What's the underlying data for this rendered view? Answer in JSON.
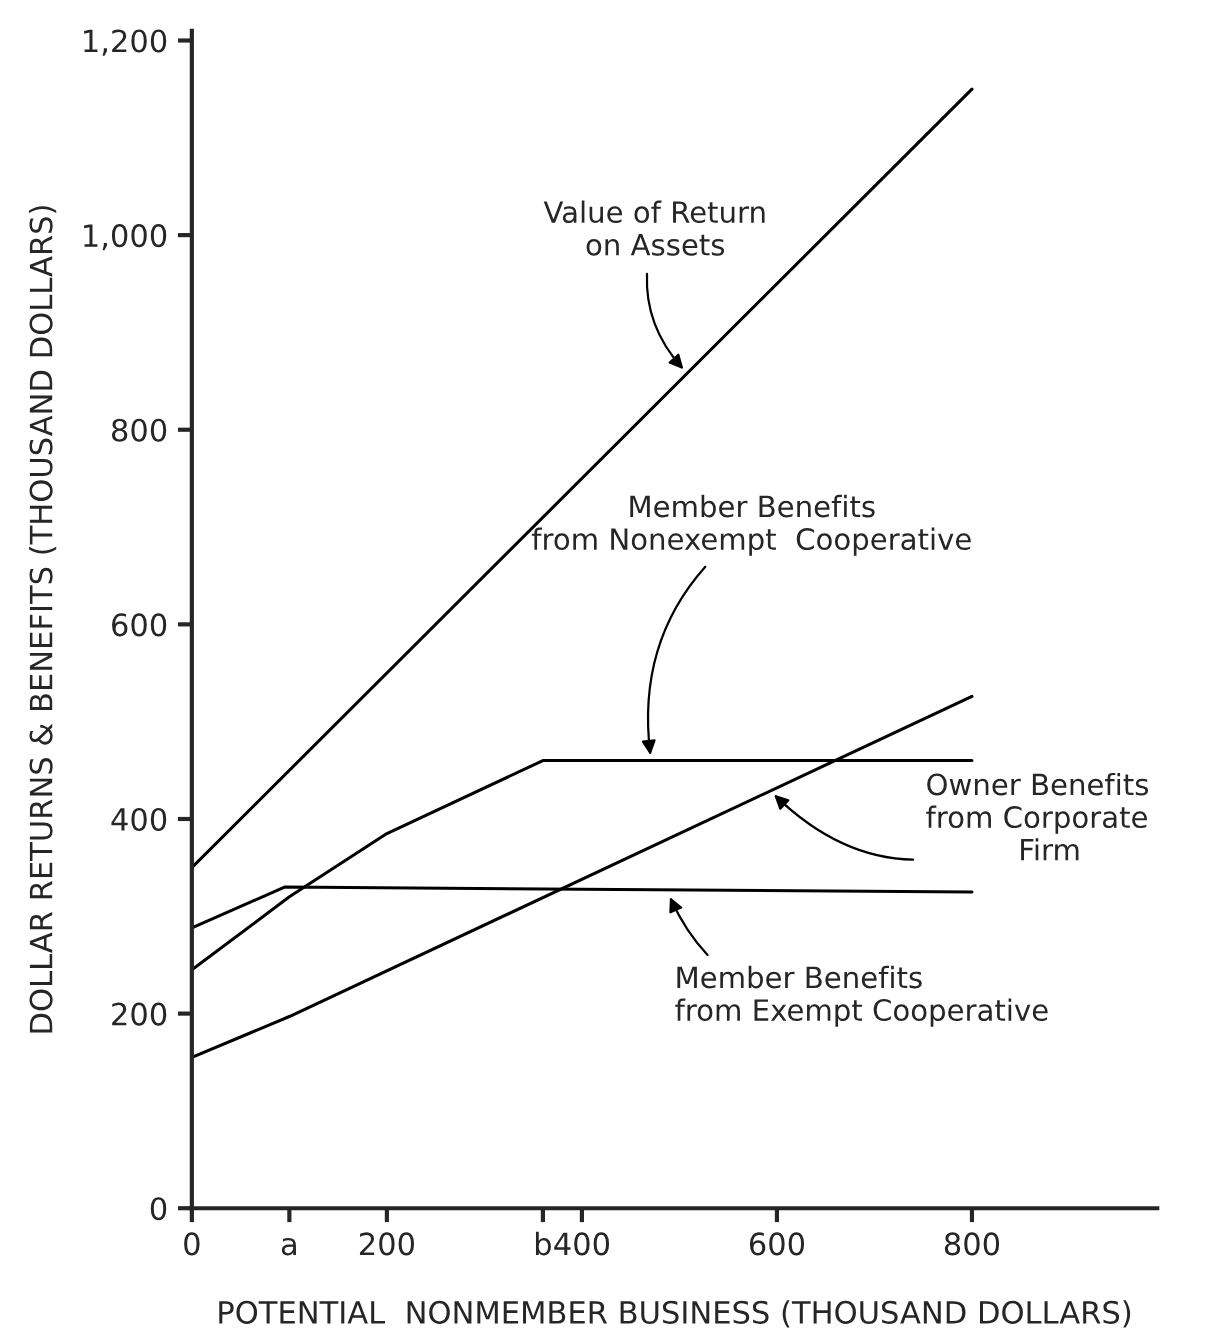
{
  "chart_data": {
    "type": "line",
    "xlabel": "POTENTIAL  NONMEMBER BUSINESS (THOUSAND DOLLARS)",
    "ylabel": "DOLLAR RETURNS & BENEFITS (THOUSAND DOLLARS)",
    "series": [
      {
        "color": "#000000",
        "x": [
          0,
          800
        ],
        "values": [
          350,
          1150
        ]
      },
      {
        "color": "#000000",
        "x": [
          0,
          100,
          200,
          360,
          800
        ],
        "values": [
          245,
          320,
          385,
          460,
          460
        ]
      },
      {
        "color": "#000000",
        "x": [
          0,
          100,
          800
        ],
        "values": [
          155,
          197,
          526
        ]
      },
      {
        "color": "#000000",
        "x": [
          0,
          95,
          800
        ],
        "values": [
          288,
          330,
          325
        ]
      }
    ],
    "xlim": [
      0,
      990
    ],
    "ylim": [
      0,
      1210
    ],
    "xticks": [
      0,
      {
        "value": 100,
        "label": "a"
      },
      200,
      {
        "value": 360,
        "label": "b"
      },
      400,
      600,
      800
    ],
    "yticks": [
      0,
      200,
      400,
      600,
      800,
      {
        "value": 1000,
        "label": "1,000"
      },
      {
        "value": 1200,
        "label": "1,200"
      }
    ],
    "grid": false,
    "legend": false,
    "marker": "none",
    "line_style": "solid",
    "annotations": [
      {
        "text": "Value of Return\non Assets",
        "x": 508,
        "y": 858
      },
      {
        "text": "Member Benefits\nfrom Nonexempt  Cooperative",
        "x": 471,
        "y": 460
      },
      {
        "text": "Owner Benefits\nfrom Corporate\n          Firm",
        "x": 593,
        "y": 429
      },
      {
        "text": "Member Benefits\nfrom Exempt Cooperative",
        "x": 488,
        "y": 325
      }
    ]
  }
}
